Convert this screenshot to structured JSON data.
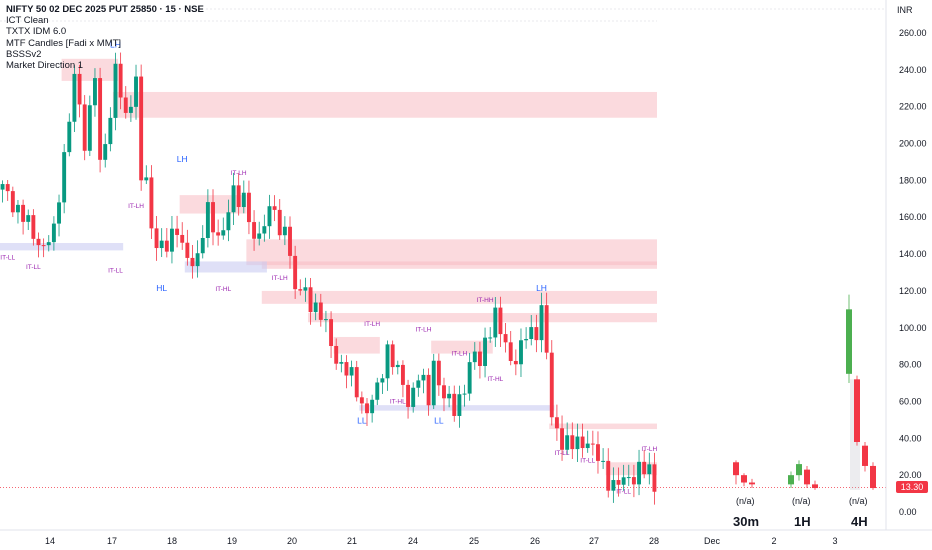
{
  "header": {
    "title": "NIFTY 50 02 DEC 2025 PUT 25850 · 15 · NSE",
    "indicators": [
      "ICT Clean",
      "TXTX IDM 6.0",
      "MTF Candles [Fadi x MMT]",
      "BSSSv2",
      "Market Direction 1"
    ]
  },
  "currency": "INR",
  "last_price": "13.30",
  "colors": {
    "up": "#089981",
    "down": "#f23645",
    "supply_zone": "#f8bbc3",
    "demand_zone": "#c9ccf2",
    "label_blue": "#2962ff",
    "label_purple": "#9c27b0",
    "mtf_up": "#4caf50"
  },
  "chart_data": {
    "type": "candlestick",
    "ylim": [
      0,
      270
    ],
    "y_ticks": [
      "260.00",
      "240.00",
      "220.00",
      "200.00",
      "180.00",
      "160.00",
      "140.00",
      "120.00",
      "100.00",
      "80.00",
      "60.00",
      "40.00",
      "20.00",
      "0.00"
    ],
    "y_tick_values": [
      260,
      240,
      220,
      200,
      180,
      160,
      140,
      120,
      100,
      80,
      60,
      40,
      20,
      0
    ],
    "x_ticks": [
      "14",
      "17",
      "18",
      "19",
      "20",
      "21",
      "24",
      "25",
      "26",
      "27",
      "28",
      "Dec",
      "2",
      "3"
    ],
    "price_path": [
      [
        0,
        175
      ],
      [
        3,
        165
      ],
      [
        6,
        150
      ],
      [
        8,
        145
      ],
      [
        10,
        150
      ],
      [
        12,
        195
      ],
      [
        14,
        235
      ],
      [
        16,
        200
      ],
      [
        18,
        240
      ],
      [
        19,
        185
      ],
      [
        21,
        215
      ],
      [
        22,
        245
      ],
      [
        24,
        210
      ],
      [
        26,
        235
      ],
      [
        27,
        185
      ],
      [
        28,
        180
      ],
      [
        29,
        150
      ],
      [
        30,
        145
      ],
      [
        34,
        150
      ],
      [
        36,
        140
      ],
      [
        38,
        135
      ],
      [
        40,
        165
      ],
      [
        42,
        150
      ],
      [
        43,
        150
      ],
      [
        45,
        175
      ],
      [
        47,
        170
      ],
      [
        49,
        145
      ],
      [
        51,
        160
      ],
      [
        53,
        165
      ],
      [
        54,
        145
      ],
      [
        55,
        160
      ],
      [
        57,
        120
      ],
      [
        59,
        118
      ],
      [
        61,
        112
      ],
      [
        63,
        100
      ],
      [
        64,
        90
      ],
      [
        66,
        80
      ],
      [
        68,
        72
      ],
      [
        70,
        60
      ],
      [
        71,
        55
      ],
      [
        73,
        65
      ],
      [
        75,
        90
      ],
      [
        77,
        75
      ],
      [
        79,
        60
      ],
      [
        81,
        75
      ],
      [
        83,
        60
      ],
      [
        84,
        82
      ],
      [
        86,
        62
      ],
      [
        88,
        55
      ],
      [
        90,
        70
      ],
      [
        92,
        85
      ],
      [
        93,
        80
      ],
      [
        94,
        95
      ],
      [
        96,
        105
      ],
      [
        98,
        90
      ],
      [
        100,
        82
      ],
      [
        102,
        95
      ],
      [
        104,
        100
      ],
      [
        105,
        110
      ],
      [
        106,
        85
      ],
      [
        107,
        50
      ],
      [
        109,
        40
      ],
      [
        111,
        35
      ],
      [
        114,
        40
      ],
      [
        116,
        28
      ],
      [
        118,
        18
      ],
      [
        120,
        15
      ],
      [
        122,
        17
      ],
      [
        124,
        25
      ],
      [
        126,
        20
      ],
      [
        127,
        13
      ]
    ],
    "num_bars": 128,
    "supply_zones": [
      [
        12,
        22,
        234,
        246
      ],
      [
        22,
        128,
        214,
        228
      ],
      [
        35,
        47,
        162,
        172
      ],
      [
        48,
        128,
        134,
        148
      ],
      [
        51,
        128,
        132,
        136
      ],
      [
        51,
        128,
        113,
        120
      ],
      [
        60,
        128,
        103,
        108
      ],
      [
        65,
        73,
        86,
        95
      ],
      [
        84,
        95,
        86,
        93
      ],
      [
        107,
        128,
        45,
        48
      ],
      [
        118,
        128,
        20,
        27
      ]
    ],
    "demand_zones": [
      [
        0,
        23,
        142,
        146
      ],
      [
        36,
        51,
        130,
        136
      ],
      [
        70,
        107,
        55,
        58
      ]
    ],
    "structure_labels": [
      {
        "text": "LH",
        "bar": 22,
        "price": 252,
        "color": "blue"
      },
      {
        "text": "LH",
        "bar": 35,
        "price": 190,
        "color": "blue"
      },
      {
        "text": "HL",
        "bar": 31,
        "price": 120,
        "color": "blue"
      },
      {
        "text": "LH",
        "bar": 105,
        "price": 120,
        "color": "blue"
      },
      {
        "text": "LL",
        "bar": 70,
        "price": 48,
        "color": "blue"
      },
      {
        "text": "LL",
        "bar": 85,
        "price": 48,
        "color": "blue"
      },
      {
        "text": "IT-LL",
        "bar": 1,
        "price": 137,
        "color": "purple"
      },
      {
        "text": "IT-LL",
        "bar": 6,
        "price": 132,
        "color": "purple"
      },
      {
        "text": "IT-LL",
        "bar": 22,
        "price": 130,
        "color": "purple"
      },
      {
        "text": "IT-LH",
        "bar": 26,
        "price": 165,
        "color": "purple"
      },
      {
        "text": "IT-LH",
        "bar": 46,
        "price": 183,
        "color": "purple"
      },
      {
        "text": "IT-HL",
        "bar": 43,
        "price": 120,
        "color": "purple"
      },
      {
        "text": "IT-LH",
        "bar": 54,
        "price": 126,
        "color": "purple"
      },
      {
        "text": "IT-LH",
        "bar": 72,
        "price": 101,
        "color": "purple"
      },
      {
        "text": "IT-HL",
        "bar": 77,
        "price": 59,
        "color": "purple"
      },
      {
        "text": "IT-LH",
        "bar": 82,
        "price": 98,
        "color": "purple"
      },
      {
        "text": "IT-LH",
        "bar": 89,
        "price": 85,
        "color": "purple"
      },
      {
        "text": "IT-HL",
        "bar": 96,
        "price": 71,
        "color": "purple"
      },
      {
        "text": "IT-HH",
        "bar": 94,
        "price": 114,
        "color": "purple"
      },
      {
        "text": "IT-LL",
        "bar": 109,
        "price": 31,
        "color": "purple"
      },
      {
        "text": "IT-LL",
        "bar": 114,
        "price": 27,
        "color": "purple"
      },
      {
        "text": "IT-LH",
        "bar": 126,
        "price": 33,
        "color": "purple"
      },
      {
        "text": "IT-LL",
        "bar": 121,
        "price": 10,
        "color": "purple"
      }
    ],
    "mtf_panels": [
      {
        "label": "30m",
        "value": "(n/a)"
      },
      {
        "label": "1H",
        "value": "(n/a)"
      },
      {
        "label": "4H",
        "value": "(n/a)"
      }
    ],
    "mtf_candles": [
      {
        "panel": 0,
        "o": 20,
        "h": 28,
        "l": 15,
        "c": 27,
        "up": false
      },
      {
        "panel": 0,
        "o": 20,
        "h": 21,
        "l": 14,
        "c": 16,
        "up": false
      },
      {
        "panel": 0,
        "o": 16,
        "h": 18,
        "l": 13,
        "c": 15,
        "up": false
      },
      {
        "panel": 1,
        "o": 15,
        "h": 22,
        "l": 13,
        "c": 20,
        "up": true
      },
      {
        "panel": 1,
        "o": 20,
        "h": 28,
        "l": 17,
        "c": 26,
        "up": true
      },
      {
        "panel": 1,
        "o": 23,
        "h": 25,
        "l": 13,
        "c": 15,
        "up": false
      },
      {
        "panel": 1,
        "o": 15,
        "h": 17,
        "l": 12,
        "c": 13,
        "up": false
      },
      {
        "panel": 2,
        "o": 75,
        "h": 118,
        "l": 70,
        "c": 110,
        "up": true
      },
      {
        "panel": 2,
        "o": 72,
        "h": 74,
        "l": 36,
        "c": 38,
        "up": false
      },
      {
        "panel": 2,
        "o": 36,
        "h": 38,
        "l": 22,
        "c": 25,
        "up": false
      },
      {
        "panel": 2,
        "o": 25,
        "h": 27,
        "l": 12,
        "c": 13,
        "up": false
      }
    ]
  }
}
